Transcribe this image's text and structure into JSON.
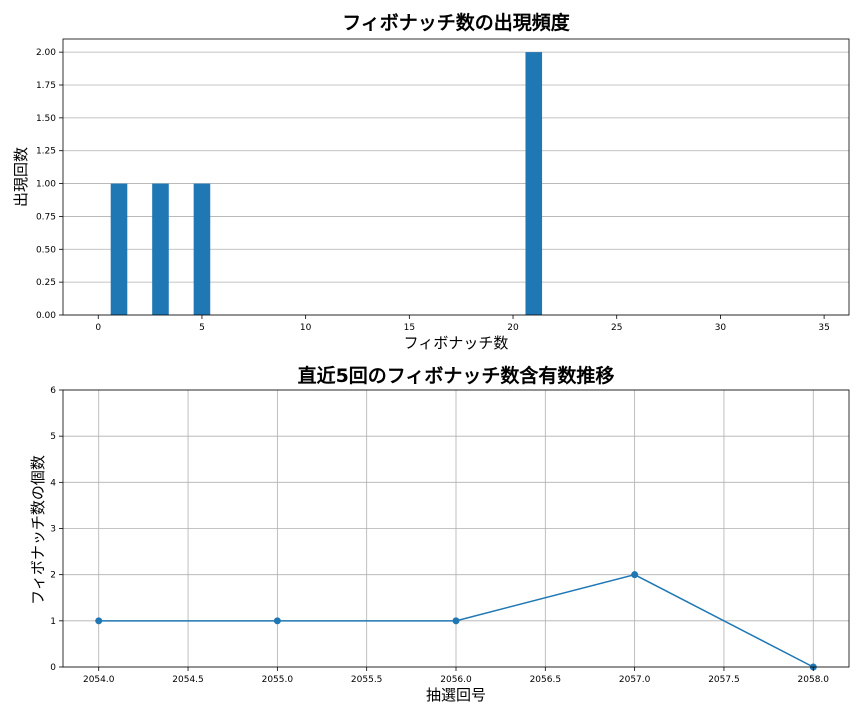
{
  "chart_data": [
    {
      "type": "bar",
      "title": "フィボナッチ数の出現頻度",
      "xlabel": "フィボナッチ数",
      "ylabel": "出現回数",
      "x": [
        1,
        3,
        5,
        21
      ],
      "values": [
        1,
        1,
        1,
        2
      ],
      "xlim": [
        -1.7,
        36.2
      ],
      "ylim": [
        0,
        2.1
      ],
      "xticks": [
        0,
        5,
        10,
        15,
        20,
        25,
        30,
        35
      ],
      "xtick_labels": [
        "0",
        "5",
        "10",
        "15",
        "20",
        "25",
        "30",
        "35"
      ],
      "yticks": [
        0,
        0.25,
        0.5,
        0.75,
        1.0,
        1.25,
        1.5,
        1.75,
        2.0
      ],
      "ytick_labels": [
        "0.00",
        "0.25",
        "0.50",
        "0.75",
        "1.00",
        "1.25",
        "1.50",
        "1.75",
        "2.00"
      ],
      "grid": "y",
      "color": "#1f77b4"
    },
    {
      "type": "line",
      "title": "直近5回のフィボナッチ数含有数推移",
      "xlabel": "抽選回号",
      "ylabel": "フィボナッチ数の個数",
      "x": [
        2054,
        2055,
        2056,
        2057,
        2058
      ],
      "values": [
        1,
        1,
        1,
        2,
        0
      ],
      "xlim": [
        2053.8,
        2058.2
      ],
      "ylim": [
        0,
        6
      ],
      "xticks": [
        2054.0,
        2054.5,
        2055.0,
        2055.5,
        2056.0,
        2056.5,
        2057.0,
        2057.5,
        2058.0
      ],
      "xtick_labels": [
        "2054.0",
        "2054.5",
        "2055.0",
        "2055.5",
        "2056.0",
        "2056.5",
        "2057.0",
        "2057.5",
        "2058.0"
      ],
      "yticks": [
        0,
        1,
        2,
        3,
        4,
        5,
        6
      ],
      "ytick_labels": [
        "0",
        "1",
        "2",
        "3",
        "4",
        "5",
        "6"
      ],
      "grid": "both",
      "marker": "circle",
      "color": "#1f77b4"
    }
  ]
}
